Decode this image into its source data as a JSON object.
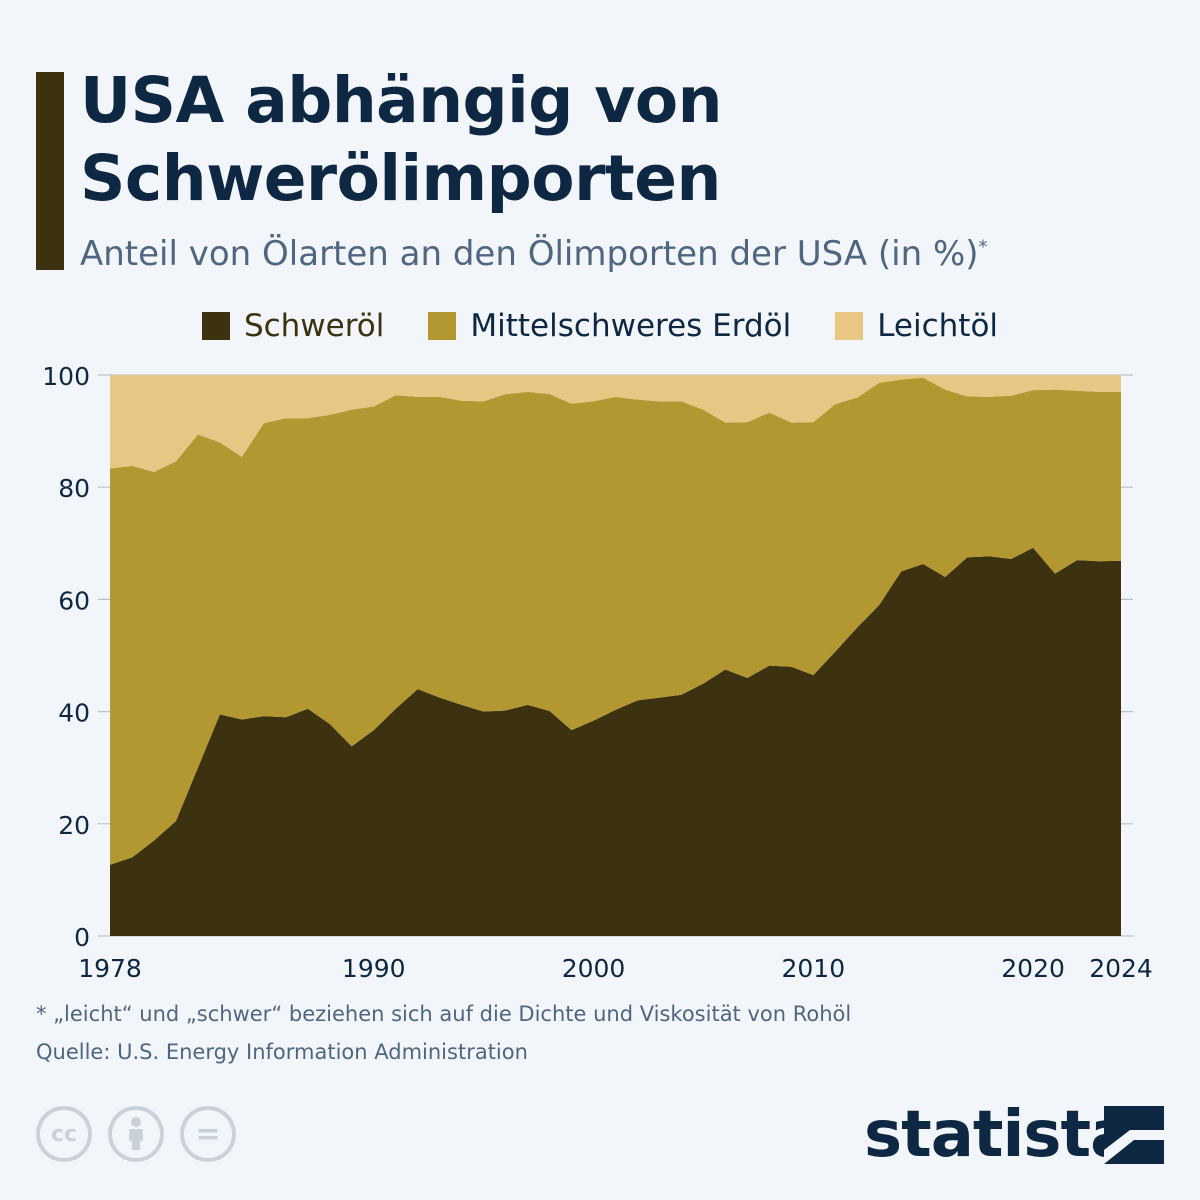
{
  "header": {
    "title_line1": "USA abhängig von",
    "title_line2": "Schwerölimporten",
    "subtitle": "Anteil von Ölarten an den Ölimporten der USA (in %)",
    "subtitle_mark": "*"
  },
  "chart_data": {
    "type": "area",
    "stacked": true,
    "title": "USA abhängig von Schwerölimporten",
    "subtitle": "Anteil von Ölarten an den Ölimporten der USA (in %)*",
    "xlabel": "",
    "ylabel": "",
    "ylim": [
      0,
      100
    ],
    "yticks": [
      "0",
      "20",
      "40",
      "60",
      "80",
      "100"
    ],
    "xticks": [
      "1978",
      "1990",
      "2000",
      "2010",
      "2020",
      "2024"
    ],
    "grid": true,
    "legend_position": "top",
    "x": [
      1978,
      1979,
      1980,
      1981,
      1982,
      1983,
      1984,
      1985,
      1986,
      1987,
      1988,
      1989,
      1990,
      1991,
      1992,
      1993,
      1994,
      1995,
      1996,
      1997,
      1998,
      1999,
      2000,
      2001,
      2002,
      2003,
      2004,
      2005,
      2006,
      2007,
      2008,
      2009,
      2010,
      2011,
      2012,
      2013,
      2014,
      2015,
      2016,
      2017,
      2018,
      2019,
      2020,
      2021,
      2022,
      2023,
      2024
    ],
    "series": [
      {
        "name": "Schweröl",
        "color": "#3c3210",
        "values": [
          12.7,
          14,
          17,
          20.5,
          30,
          39.5,
          38.6,
          39.2,
          39,
          40.5,
          37.8,
          33.8,
          36.7,
          40.5,
          44,
          42.5,
          41.2,
          40,
          40.2,
          41.2,
          40.1,
          36.7,
          38.4,
          40.3,
          42,
          42.5,
          43,
          45,
          47.5,
          46,
          48.2,
          48,
          46.5,
          50.7,
          55,
          59,
          65,
          66.3,
          64,
          67.5,
          67.7,
          67.2,
          69.2,
          64.6,
          67,
          66.8,
          66.9
        ]
      },
      {
        "name": "Mittelschweres Erdöl",
        "color": "#b39832",
        "values": [
          70.6,
          69.8,
          65.7,
          64.1,
          59.4,
          48.5,
          46.8,
          52.2,
          53.3,
          51.8,
          55.1,
          60,
          57.7,
          55.9,
          52.1,
          53.6,
          54.2,
          55.3,
          56.4,
          55.8,
          56.5,
          58.2,
          56.9,
          55.8,
          53.6,
          52.8,
          52.3,
          48.8,
          44,
          45.6,
          45.1,
          43.5,
          45.1,
          44.1,
          41,
          39.6,
          34.2,
          33.2,
          33.4,
          28.7,
          28.4,
          29.1,
          28.1,
          32.8,
          30.2,
          30.2,
          30.1
        ]
      },
      {
        "name": "Leichtöl",
        "color": "#e8c684",
        "values": [
          16.7,
          16.2,
          17.3,
          15.4,
          10.6,
          12,
          14.6,
          8.6,
          7.7,
          7.7,
          7.1,
          6.2,
          5.6,
          3.6,
          3.9,
          3.9,
          4.6,
          4.7,
          3.4,
          3,
          3.4,
          5.1,
          4.7,
          3.9,
          4.4,
          4.7,
          4.7,
          6.2,
          8.5,
          8.4,
          6.7,
          8.5,
          8.4,
          5.2,
          4,
          1.4,
          0.8,
          0.5,
          2.6,
          3.8,
          3.9,
          3.7,
          2.7,
          2.6,
          2.8,
          3,
          3
        ]
      }
    ]
  },
  "footer": {
    "note": "* „leicht“ und „schwer“ beziehen sich auf die Dichte und Viskosität von Rohöl",
    "source": "Quelle: U.S. Energy Information Administration",
    "license_icons": [
      "cc-icon",
      "attribution-icon",
      "no-derivatives-icon"
    ],
    "cc_label": "cc",
    "nd_label": "=",
    "brand": "statista"
  }
}
